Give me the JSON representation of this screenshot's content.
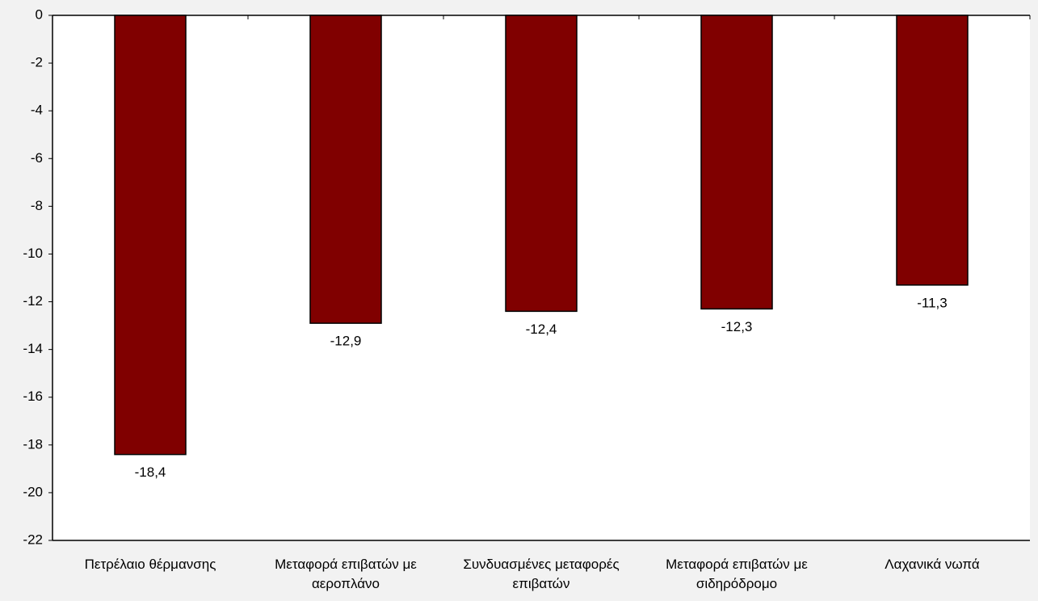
{
  "chart_data": {
    "type": "bar",
    "categories": [
      "Πετρέλαιο θέρμανσης",
      "Μεταφορά επιβατών με αεροπλάνο",
      "Συνδυασμένες μεταφορές επιβατών",
      "Μεταφορά επιβατών με σιδηρόδρομο",
      "Λαχανικά νωπά"
    ],
    "values": [
      -18.4,
      -12.9,
      -12.4,
      -12.3,
      -11.3
    ],
    "value_labels": [
      "-18,4",
      "-12,9",
      "-12,4",
      "-12,3",
      "-11,3"
    ],
    "color": "#800000",
    "ylim": [
      -22,
      0
    ],
    "yticks": [
      0,
      -2,
      -4,
      -6,
      -8,
      -10,
      -12,
      -14,
      -16,
      -18,
      -20,
      -22
    ],
    "grid": false
  }
}
